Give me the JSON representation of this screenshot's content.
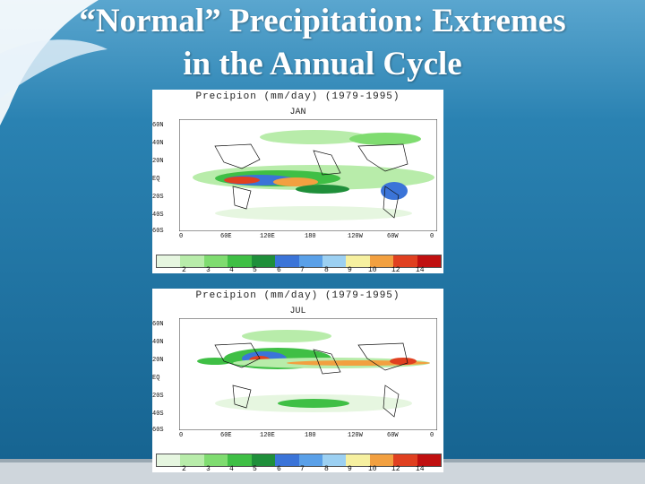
{
  "slide": {
    "title_line1": "“Normal” Precipitation: Extremes",
    "title_line2": "in the Annual Cycle"
  },
  "panels": [
    {
      "title": "Precipion (mm/day) (1979-1995)",
      "month": "JAN",
      "lat_labels": [
        "60N",
        "40N",
        "20N",
        "EQ",
        "20S",
        "40S",
        "60S"
      ],
      "lon_labels": [
        "0",
        "60E",
        "120E",
        "180",
        "120W",
        "60W",
        "0"
      ],
      "colorbar_ticks": [
        "2",
        "3",
        "4",
        "5",
        "6",
        "7",
        "8",
        "9",
        "10",
        "12",
        "14"
      ]
    },
    {
      "title": "Precipion (mm/day) (1979-1995)",
      "month": "JUL",
      "lat_labels": [
        "60N",
        "40N",
        "20N",
        "EQ",
        "20S",
        "40S",
        "60S"
      ],
      "lon_labels": [
        "0",
        "60E",
        "120E",
        "180",
        "120W",
        "60W",
        "0"
      ],
      "colorbar_ticks": [
        "2",
        "3",
        "4",
        "5",
        "6",
        "7",
        "8",
        "9",
        "10",
        "12",
        "14"
      ]
    }
  ],
  "colors": {
    "background": "#1b6f9c",
    "scale": [
      "#e6f6e0",
      "#b8ecaa",
      "#7fdc70",
      "#3fbf45",
      "#1f8f3a",
      "#3b74d8",
      "#5aa0e8",
      "#9cd0f2",
      "#f6f0a0",
      "#f2a040",
      "#e04020",
      "#c01010"
    ]
  }
}
